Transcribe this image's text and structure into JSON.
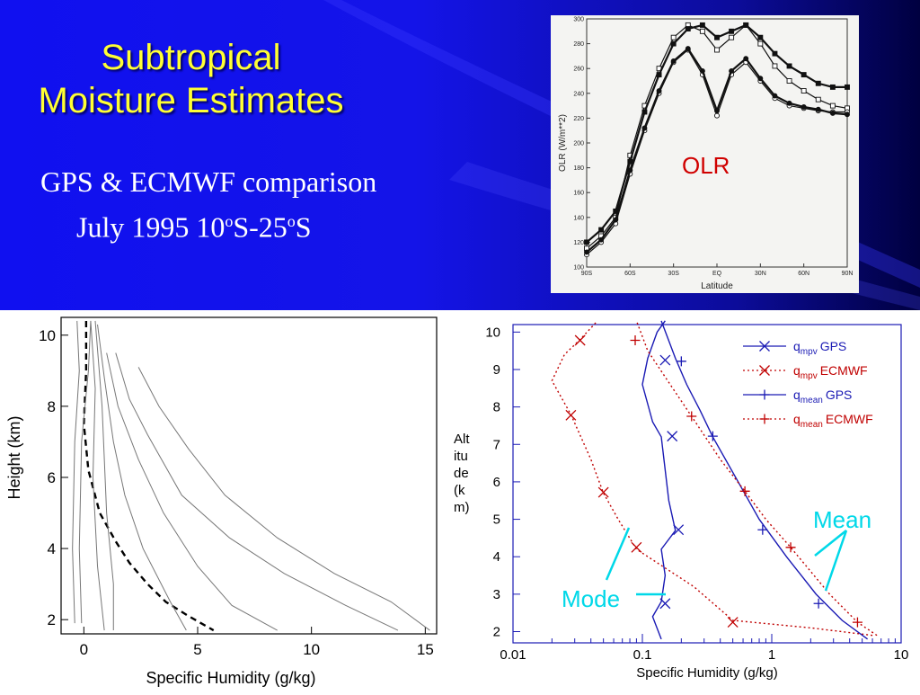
{
  "slide": {
    "title": "Subtropical Moisture Estimates",
    "subtitle_line1": "GPS & ECMWF comparison",
    "subtitle_line2_pre": "July 1995 10",
    "subtitle_sup1": "o",
    "subtitle_mid": "S-25",
    "subtitle_sup2": "o",
    "subtitle_post": "S",
    "colors": {
      "background": "#1414e8",
      "title": "#ffff33",
      "subtitle": "#ffffff"
    }
  },
  "chart_data": [
    {
      "type": "line",
      "ylabel": "OLR (W/m**2)",
      "xlabel": "Latitude",
      "annotation": "OLR",
      "x_ticks": [
        "90S",
        "60S",
        "30S",
        "EQ",
        "30N",
        "60N",
        "90N"
      ],
      "y_ticks": [
        100,
        120,
        140,
        160,
        180,
        200,
        220,
        240,
        260,
        280,
        300
      ],
      "xlim": [
        -90,
        90
      ],
      "ylim": [
        100,
        300
      ],
      "series": [
        {
          "marker": "square-open",
          "x": [
            -90,
            -80,
            -70,
            -60,
            -50,
            -40,
            -30,
            -20,
            -10,
            0,
            10,
            20,
            30,
            40,
            50,
            60,
            70,
            80,
            90
          ],
          "y": [
            115,
            125,
            140,
            190,
            230,
            260,
            285,
            295,
            290,
            275,
            285,
            295,
            280,
            262,
            250,
            242,
            235,
            230,
            228
          ]
        },
        {
          "marker": "square-filled",
          "x": [
            -90,
            -80,
            -70,
            -60,
            -50,
            -40,
            -30,
            -20,
            -10,
            0,
            10,
            20,
            30,
            40,
            50,
            60,
            70,
            80,
            90
          ],
          "y": [
            120,
            130,
            145,
            185,
            225,
            255,
            280,
            292,
            295,
            285,
            290,
            295,
            285,
            272,
            262,
            255,
            248,
            245,
            245
          ]
        },
        {
          "marker": "circle-open",
          "x": [
            -90,
            -80,
            -70,
            -60,
            -50,
            -40,
            -30,
            -20,
            -10,
            0,
            10,
            20,
            30,
            40,
            50,
            60,
            70,
            80,
            90
          ],
          "y": [
            110,
            120,
            135,
            175,
            210,
            240,
            265,
            275,
            255,
            222,
            255,
            265,
            250,
            236,
            230,
            228,
            226,
            225,
            225
          ]
        },
        {
          "marker": "circle-filled",
          "x": [
            -90,
            -80,
            -70,
            -60,
            -50,
            -40,
            -30,
            -20,
            -10,
            0,
            10,
            20,
            30,
            40,
            50,
            60,
            70,
            80,
            90
          ],
          "y": [
            112,
            122,
            138,
            178,
            212,
            242,
            266,
            276,
            258,
            226,
            258,
            268,
            252,
            238,
            232,
            229,
            227,
            224,
            223
          ]
        }
      ]
    },
    {
      "type": "line",
      "xlabel": "Specific Humidity (g/kg)",
      "ylabel": "Height (km)",
      "x_ticks": [
        0,
        5,
        10,
        15
      ],
      "y_ticks": [
        2,
        4,
        6,
        8,
        10
      ],
      "xlim": [
        -1,
        15.5
      ],
      "ylim": [
        1.6,
        10.5
      ],
      "series": [
        {
          "style": "dashed",
          "x": [
            0.1,
            0.1,
            0.0,
            0.2,
            0.7,
            1.4,
            2.0,
            2.8,
            3.6,
            4.6,
            5.7
          ],
          "y": [
            10.4,
            9.0,
            7.5,
            6.2,
            5.0,
            4.2,
            3.6,
            3.0,
            2.5,
            2.1,
            1.7
          ]
        },
        {
          "style": "solid",
          "x": [
            -0.4,
            -0.5,
            -0.4,
            -0.2,
            -0.3
          ],
          "y": [
            1.9,
            4.0,
            7.0,
            9.0,
            10.4
          ]
        },
        {
          "style": "solid",
          "x": [
            -0.1,
            -0.2,
            -0.1,
            0.2,
            0.3
          ],
          "y": [
            1.9,
            4.0,
            7.0,
            9.0,
            10.4
          ]
        },
        {
          "style": "solid",
          "x": [
            0.9,
            0.6,
            0.4,
            0.5,
            0.3
          ],
          "y": [
            1.7,
            3.5,
            6.0,
            8.5,
            10.4
          ]
        },
        {
          "style": "solid",
          "x": [
            1.3,
            1.3,
            1.0,
            0.8,
            0.5
          ],
          "y": [
            1.7,
            3.0,
            5.0,
            8.0,
            10.4
          ]
        },
        {
          "style": "solid",
          "x": [
            4.5,
            3.8,
            2.6,
            1.8,
            1.3,
            0.9,
            0.6
          ],
          "y": [
            1.7,
            2.5,
            4.0,
            5.5,
            7.0,
            8.8,
            10.3
          ]
        },
        {
          "style": "solid",
          "x": [
            8.5,
            6.5,
            5.0,
            3.5,
            2.4,
            1.5,
            1.0
          ],
          "y": [
            1.7,
            2.4,
            3.5,
            5.0,
            6.5,
            8.0,
            9.5
          ]
        },
        {
          "style": "solid",
          "x": [
            13.8,
            11.5,
            8.8,
            6.4,
            4.3,
            2.8,
            2.0,
            1.4
          ],
          "y": [
            1.7,
            2.4,
            3.3,
            4.3,
            5.5,
            7.2,
            8.2,
            9.5
          ]
        },
        {
          "style": "solid",
          "x": [
            15.2,
            13.5,
            11.0,
            8.5,
            6.2,
            4.6,
            3.3,
            2.4
          ],
          "y": [
            1.7,
            2.5,
            3.3,
            4.3,
            5.5,
            6.8,
            8.0,
            9.1
          ]
        }
      ]
    },
    {
      "type": "line",
      "xlabel": "Specific Humidity (g/kg)",
      "ylabel": "Altitude (km)",
      "ylabel_lines": [
        "Alt",
        "itu",
        "de",
        "(k",
        "m)"
      ],
      "x_scale": "log",
      "xlim": [
        0.01,
        10
      ],
      "ylim": [
        1.7,
        10.2
      ],
      "x_ticks": [
        "0.01",
        "0.1",
        "1",
        "10"
      ],
      "y_ticks": [
        2,
        3,
        4,
        5,
        6,
        7,
        8,
        9,
        10
      ],
      "series": [
        {
          "name": "q",
          "sub": "mpv",
          "suffix": "GPS",
          "color": "#1a1ab4",
          "dash": "",
          "marker": "x",
          "x": [
            0.14,
            0.12,
            0.14,
            0.15,
            0.14,
            0.18,
            0.16,
            0.14,
            0.12,
            0.1,
            0.11,
            0.13,
            0.15
          ],
          "y": [
            1.8,
            2.4,
            2.8,
            3.5,
            4.2,
            4.7,
            5.5,
            7.2,
            7.6,
            8.6,
            9.3,
            10.0,
            10.3
          ],
          "markers_x": [
            0.15,
            0.19,
            0.17,
            0.15
          ],
          "markers_y": [
            2.75,
            4.72,
            7.22,
            9.25
          ]
        },
        {
          "name": "q",
          "sub": "mpv",
          "suffix": "ECMWF",
          "color": "#c00000",
          "dash": "2,3",
          "marker": "x",
          "x": [
            6.0,
            2.0,
            0.5,
            0.25,
            0.09,
            0.065,
            0.05,
            0.04,
            0.028,
            0.02,
            0.025,
            0.033,
            0.045
          ],
          "y": [
            1.9,
            2.1,
            2.3,
            3.2,
            4.2,
            5.0,
            5.7,
            6.6,
            7.8,
            8.7,
            9.4,
            9.8,
            10.3
          ],
          "markers_x": [
            0.5,
            0.09,
            0.05,
            0.028,
            0.033
          ],
          "markers_y": [
            2.25,
            4.25,
            5.72,
            7.78,
            9.78
          ]
        },
        {
          "name": "q",
          "sub": "mean",
          "suffix": "GPS",
          "color": "#1a1ab4",
          "dash": "",
          "marker": "+",
          "x": [
            5.5,
            3.5,
            2.2,
            1.3,
            0.8,
            0.55,
            0.35,
            0.28,
            0.22,
            0.18,
            0.14
          ],
          "y": [
            1.8,
            2.3,
            3.0,
            4.0,
            5.0,
            6.0,
            7.2,
            7.9,
            8.6,
            9.3,
            10.3
          ],
          "markers_x": [
            2.3,
            0.85,
            0.35,
            0.2
          ],
          "markers_y": [
            2.75,
            4.72,
            7.22,
            9.22
          ]
        },
        {
          "name": "q",
          "sub": "mean",
          "suffix": "ECMWF",
          "color": "#c00000",
          "dash": "2,3",
          "marker": "+",
          "x": [
            6.5,
            4.6,
            2.8,
            1.4,
            0.9,
            0.62,
            0.4,
            0.24,
            0.15,
            0.11,
            0.09
          ],
          "y": [
            1.9,
            2.25,
            3.0,
            4.25,
            5.0,
            5.75,
            6.6,
            7.75,
            8.8,
            9.5,
            10.3
          ],
          "markers_x": [
            4.6,
            1.4,
            0.62,
            0.24,
            0.088
          ],
          "markers_y": [
            2.25,
            4.25,
            5.75,
            7.75,
            9.78
          ]
        }
      ],
      "annotations": [
        {
          "text": "Mean",
          "color": "#00d8e8"
        },
        {
          "text": "Mode",
          "color": "#00d8e8"
        }
      ]
    }
  ]
}
